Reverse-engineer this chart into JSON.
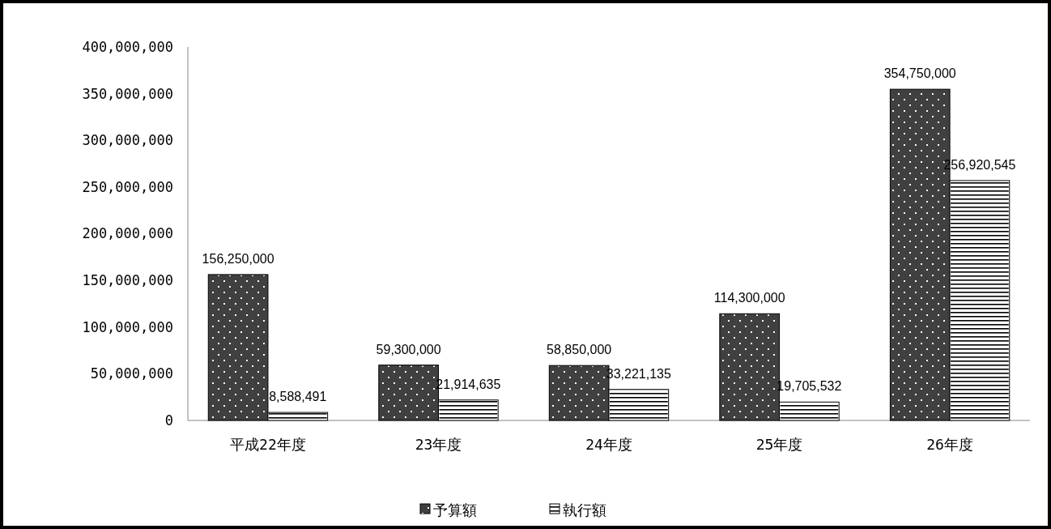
{
  "chart_data": {
    "type": "bar",
    "categories": [
      "平成22年度",
      "23年度",
      "24年度",
      "25年度",
      "26年度"
    ],
    "series": [
      {
        "name": "予算額",
        "color": "#404040",
        "values": [
          156250000,
          59300000,
          58850000,
          114300000,
          354750000
        ],
        "value_labels": [
          "156,250,000",
          "59,300,000",
          "58,850,000",
          "114,300,000",
          "354,750,000"
        ]
      },
      {
        "name": "執行額",
        "color": "#ffffff",
        "values": [
          8588491,
          21914635,
          33221135,
          19705532,
          256920545
        ],
        "value_labels": [
          "8,588,491",
          "21,914,635",
          "33,221,135",
          "19,705,532",
          "256,920,545"
        ]
      }
    ],
    "ylim": [
      0,
      400000000
    ],
    "yticks": [
      0,
      {
        "value": 50000000,
        "label": "50,000,000"
      },
      {
        "value": 100000000,
        "label": "100,000,000"
      },
      {
        "value": 150000000,
        "label": "150,000,000"
      },
      {
        "value": 200000000,
        "label": "200,000,000"
      },
      {
        "value": 250000000,
        "label": "250,000,000"
      },
      {
        "value": 300000000,
        "label": "300,000,000"
      },
      {
        "value": 350000000,
        "label": "350,000,000"
      },
      {
        "value": 400000000,
        "label": "400,000,000"
      }
    ],
    "legend": "bottom",
    "grid": false
  }
}
